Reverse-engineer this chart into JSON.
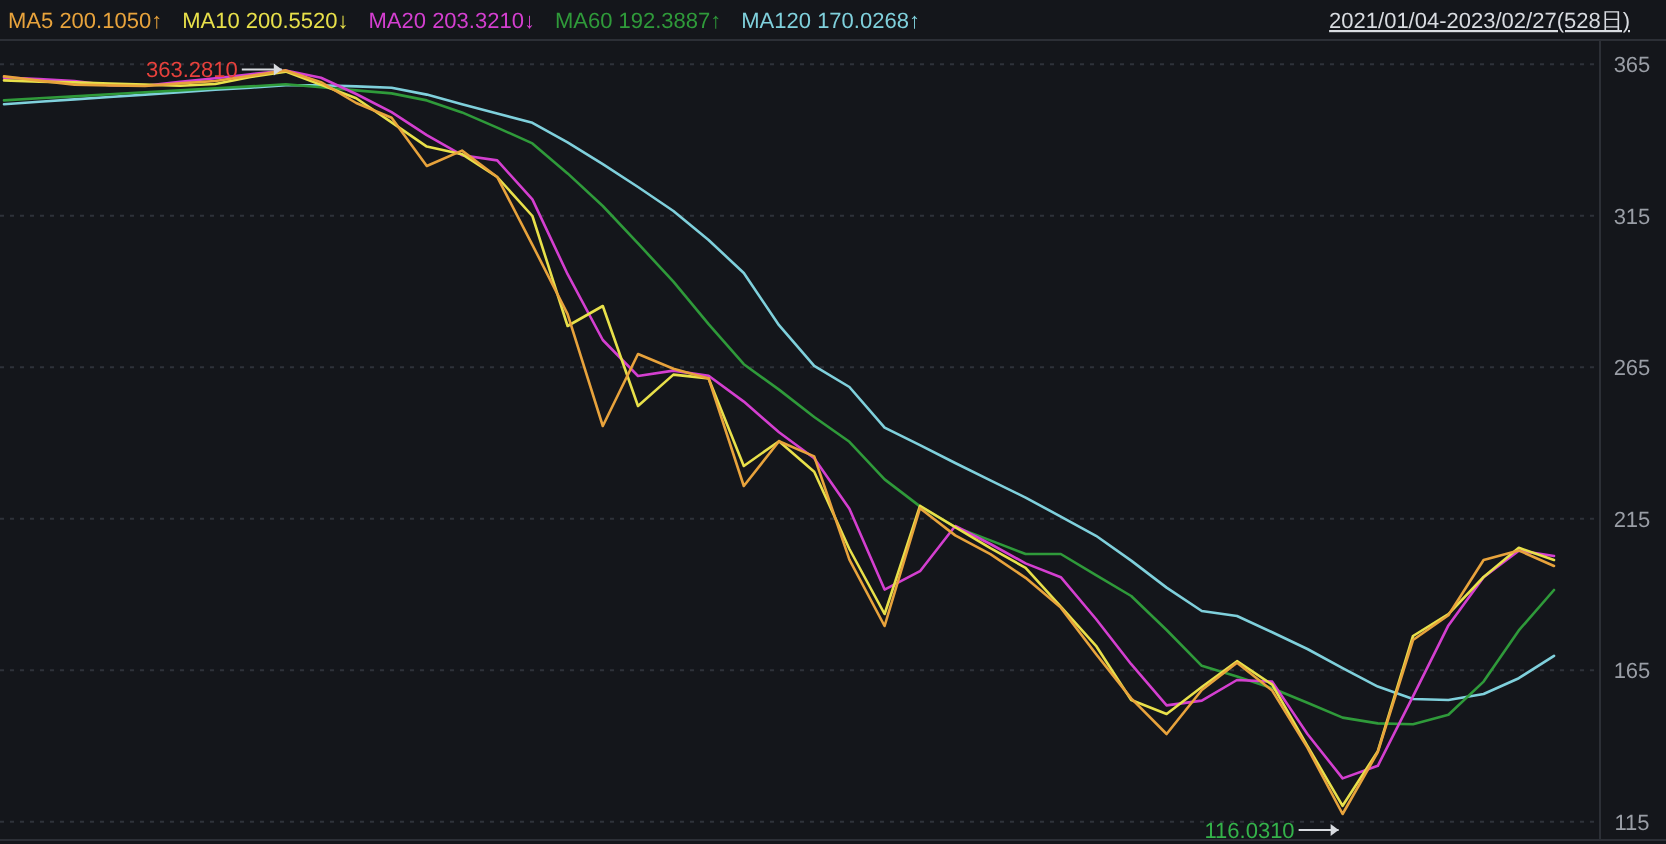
{
  "chart_data": {
    "type": "line",
    "categories": [
      null,
      null,
      null,
      null,
      null,
      null,
      null,
      null,
      null,
      null,
      null,
      null,
      null,
      null,
      null,
      null,
      null,
      null,
      null,
      null,
      null,
      null,
      null,
      null,
      null,
      null,
      null,
      null,
      null,
      null,
      null,
      null,
      null,
      null,
      null,
      null,
      null,
      null,
      null,
      null,
      null,
      null,
      null,
      null,
      null
    ],
    "ylim": [
      109,
      373
    ],
    "yticks": [
      115,
      165,
      215,
      265,
      315,
      365
    ],
    "tick_labels": "y",
    "grid": "y",
    "line_style": "solid",
    "series": [
      {
        "name": "MA120 170.0268↑",
        "color": "#7fd0dc",
        "values": [
          351.8,
          352.6,
          353.4,
          354.2,
          355.0,
          355.8,
          356.6,
          357.3,
          358.1,
          358.1,
          357.7,
          357.2,
          355.0,
          351.8,
          348.8,
          345.7,
          339.2,
          332.0,
          324.5,
          316.6,
          307.0,
          296.1,
          278.9,
          265.5,
          258.5,
          245.1,
          239.3,
          233.4,
          227.7,
          222.0,
          215.7,
          209.4,
          201.2,
          192.3,
          184.6,
          182.9,
          177.6,
          172.0,
          165.7,
          159.6,
          155.5,
          155.2,
          157.2,
          162.4,
          169.8
        ]
      },
      {
        "name": "MA60 192.3887↑",
        "color": "#2f9a3a",
        "values": [
          353.1,
          353.8,
          354.4,
          355.1,
          355.8,
          356.4,
          357.1,
          357.7,
          358.4,
          357.4,
          356.4,
          355.4,
          353.1,
          349.1,
          344.1,
          338.9,
          329.0,
          318.2,
          305.9,
          293.3,
          279.2,
          266.0,
          257.6,
          248.6,
          240.4,
          228.0,
          219.1,
          212.3,
          207.9,
          203.4,
          203.4,
          196.4,
          189.5,
          178.3,
          166.5,
          162.9,
          159.1,
          154.3,
          149.4,
          147.5,
          147.2,
          150.3,
          161.3,
          178.2,
          191.5
        ]
      },
      {
        "name": "MA20 203.3210↓",
        "color": "#d43fd0",
        "values": [
          360.6,
          360.1,
          359.5,
          358.1,
          357.9,
          359.2,
          360.4,
          361.7,
          362.9,
          360.5,
          355.2,
          349.2,
          341.6,
          335.0,
          333.3,
          320.4,
          295.7,
          274.0,
          262.1,
          263.9,
          262.2,
          253.7,
          243.6,
          235.0,
          218.3,
          191.6,
          197.7,
          212.6,
          206.7,
          200.3,
          195.7,
          181.9,
          167.0,
          153.4,
          155.0,
          161.8,
          161.3,
          144.0,
          129.3,
          133.5,
          156.4,
          179.8,
          195.7,
          204.5,
          202.7
        ]
      },
      {
        "name": "MA10 200.5520↓",
        "color": "#e8e04a",
        "values": [
          359.7,
          359.3,
          359.0,
          358.6,
          358.3,
          357.9,
          358.5,
          360.8,
          362.6,
          358.2,
          353.8,
          345.8,
          337.8,
          335.3,
          327.8,
          314.9,
          278.6,
          285.2,
          252.2,
          262.6,
          261.3,
          232.4,
          240.6,
          230.5,
          205.0,
          183.6,
          219.3,
          212.2,
          205.3,
          198.8,
          186.0,
          173.1,
          155.2,
          150.6,
          159.5,
          168.0,
          160.3,
          140.1,
          120.3,
          138.3,
          176.3,
          183.5,
          195.8,
          205.4,
          201.4
        ]
      },
      {
        "name": "MA5 200.1050↑",
        "color": "#e8a33c",
        "values": [
          361.0,
          359.6,
          358.3,
          358.0,
          357.8,
          358.7,
          359.5,
          361.2,
          363.0,
          359.1,
          352.2,
          347.3,
          331.4,
          336.5,
          327.8,
          305.4,
          282.5,
          245.6,
          269.4,
          264.5,
          261.3,
          225.8,
          240.6,
          235.6,
          201.5,
          179.6,
          218.5,
          209.5,
          203.3,
          195.5,
          185.7,
          170.4,
          155.7,
          144.0,
          158.5,
          167.5,
          158.3,
          139.5,
          117.6,
          138.0,
          175.0,
          183.2,
          201.4,
          204.6,
          199.4
        ]
      }
    ],
    "annotations": [
      {
        "text": "363.2810",
        "y": 363.281
      },
      "116.0310",
      "2021/01/04-2023/02/27(528日)"
    ]
  }
}
